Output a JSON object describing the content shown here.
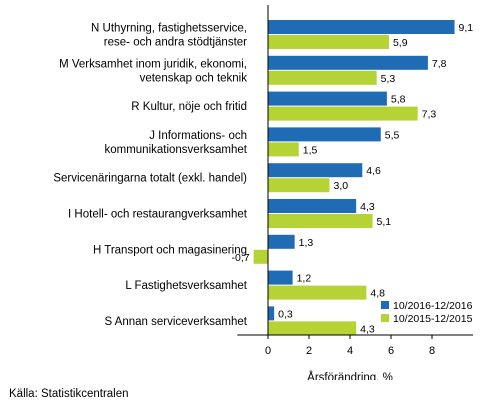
{
  "chart_data": {
    "type": "bar",
    "orientation": "horizontal",
    "categories": [
      [
        "N Uthyrning, fastighetsservice,",
        "rese- och andra stödtjänster"
      ],
      [
        "M Verksamhet inom juridik, ekonomi,",
        "vetenskap och teknik"
      ],
      [
        "R Kultur, nöje och fritid"
      ],
      [
        "J Informations- och",
        "kommunikationsverksamhet"
      ],
      [
        "Servicenäringarna totalt (exkl. handel)"
      ],
      [
        "I Hotell- och restaurangverksamhet"
      ],
      [
        "H Transport och magasinering"
      ],
      [
        "L Fastighetsverksamhet"
      ],
      [
        "S Annan serviceverksamhet"
      ]
    ],
    "series": [
      {
        "name": "10/2016-12/2016",
        "color": "#1f6cb5",
        "values": [
          9.1,
          7.8,
          5.8,
          5.5,
          4.6,
          4.3,
          1.3,
          1.2,
          0.3
        ],
        "labels": [
          "9,1",
          "7,8",
          "5,8",
          "5,5",
          "4,6",
          "4,3",
          "1,3",
          "1,2",
          "0,3"
        ]
      },
      {
        "name": "10/2015-12/2015",
        "color": "#b5d334",
        "values": [
          5.9,
          5.3,
          7.3,
          1.5,
          3.0,
          5.1,
          -0.7,
          4.8,
          4.3
        ],
        "labels": [
          "5,9",
          "5,3",
          "7,3",
          "1,5",
          "3,0",
          "5,1",
          "-0,7",
          "4,8",
          "4,3"
        ]
      }
    ],
    "xlabel": "Årsförändring, %",
    "xticks": [
      0,
      2,
      4,
      6,
      8
    ],
    "xlim": [
      -1.5,
      10
    ],
    "grid": false,
    "legend": "bottom-right"
  },
  "source": "Källa: Statistikcentralen"
}
